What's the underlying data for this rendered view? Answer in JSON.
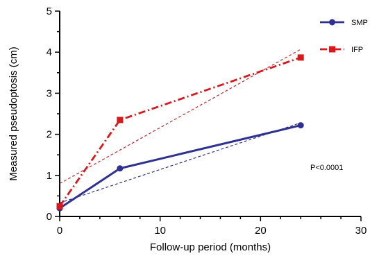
{
  "chart_data": {
    "type": "line",
    "title": "",
    "xlabel": "Follow-up period (months)",
    "ylabel": "Measured pseudoptosis (cm)",
    "xlim": [
      0,
      30
    ],
    "ylim": [
      0,
      5
    ],
    "x_ticks": [
      0,
      10,
      20,
      30
    ],
    "y_ticks": [
      0,
      1,
      2,
      3,
      4,
      5
    ],
    "grid": false,
    "legend_position": "top-right",
    "annotation": "P<0.0001",
    "series": [
      {
        "name": "SMP",
        "x": [
          0,
          6,
          24
        ],
        "values": [
          0.2,
          1.17,
          2.22
        ],
        "color": "#2e3192",
        "line_style": "solid",
        "marker": "circle",
        "trend": {
          "x": [
            0,
            24
          ],
          "values": [
            0.33,
            2.28
          ],
          "color": "#2e3192",
          "line_style": "dashed"
        }
      },
      {
        "name": "IFP",
        "x": [
          0,
          6,
          24
        ],
        "values": [
          0.25,
          2.35,
          3.87
        ],
        "color": "#d7191c",
        "line_style": "dash-dot",
        "marker": "square",
        "trend": {
          "x": [
            0,
            24
          ],
          "values": [
            0.8,
            4.07
          ],
          "color": "#c0282e",
          "line_style": "dashed"
        }
      }
    ]
  }
}
